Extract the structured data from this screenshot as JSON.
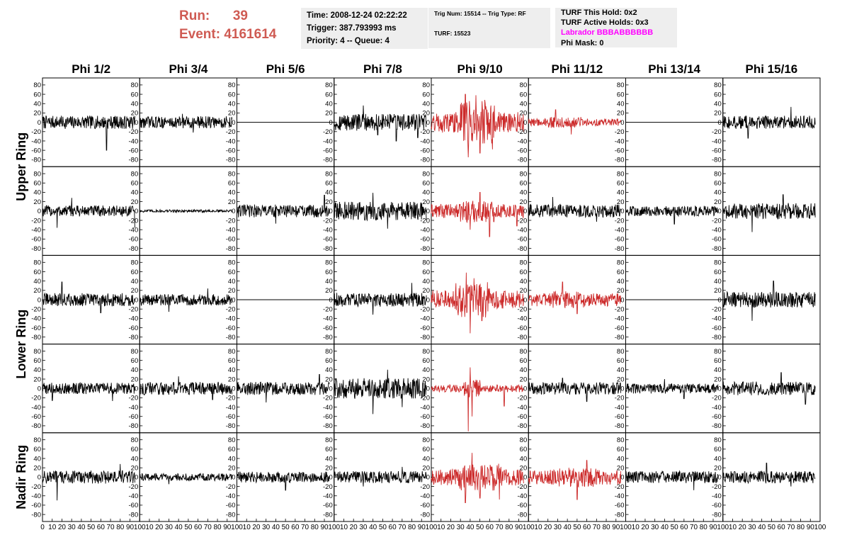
{
  "header": {
    "run_label": "Run:",
    "run_value": "39",
    "event_label": "Event:",
    "event_value": "4161614"
  },
  "info1": {
    "time": "Time: 2008-12-24 02:22:22",
    "trigger": "Trigger: 387.793993 ms",
    "priority": "Priority: 4 -- Queue: 4"
  },
  "info2": {
    "trig": "Trig Num: 15514 -- Trig Type: RF",
    "turf": "TURF: 15523"
  },
  "info3": {
    "this_hold": "TURF This Hold: 0x2",
    "active_holds": "TURF Active Holds: 0x3",
    "labrador": "Labrador BBBABBBBBB",
    "phi_mask": "Phi Mask: 0"
  },
  "colors": {
    "accent": "#cf5b53",
    "highlight": "#cc2a2a",
    "trace": "#000000",
    "labrador": "#ff00ff",
    "info_bg": "#eeeeee"
  },
  "chart_data": {
    "type": "line",
    "columns": [
      "Phi 1/2",
      "Phi 3/4",
      "Phi 5/6",
      "Phi 7/8",
      "Phi 9/10",
      "Phi 11/12",
      "Phi 13/14",
      "Phi 15/16"
    ],
    "ring_labels": [
      "Upper Ring",
      "Lower Ring",
      "Nadir Ring"
    ],
    "ylim": [
      -95,
      95
    ],
    "yticks": [
      -80,
      -60,
      -40,
      -20,
      0,
      20,
      40,
      60,
      80
    ],
    "xlim": [
      0,
      100
    ],
    "xtick_labels": [
      "0",
      "10",
      "20",
      "30",
      "40",
      "50",
      "60",
      "70",
      "80",
      "90",
      "100"
    ],
    "highlight_columns": [
      4,
      5
    ],
    "panels": [
      {
        "row": 0,
        "col": 0,
        "amp": 14,
        "spikes": [
          [
            14,
            -8
          ],
          [
            66,
            -60
          ],
          [
            84,
            -14
          ]
        ],
        "color": "black"
      },
      {
        "row": 0,
        "col": 1,
        "amp": 13,
        "spikes": [
          [
            44,
            18
          ],
          [
            55,
            -22
          ]
        ],
        "color": "black"
      },
      {
        "row": 0,
        "col": 2,
        "amp": 0,
        "flat": true,
        "color": "black"
      },
      {
        "row": 0,
        "col": 3,
        "amp": 18,
        "spikes": [
          [
            30,
            36
          ],
          [
            45,
            -27
          ],
          [
            64,
            -40
          ],
          [
            86,
            -33
          ]
        ],
        "color": "black"
      },
      {
        "row": 0,
        "col": 4,
        "amp": 22,
        "spikes": [
          [
            35,
            60
          ],
          [
            38,
            -75
          ],
          [
            46,
            58
          ],
          [
            50,
            -66
          ],
          [
            55,
            48
          ],
          [
            63,
            -58
          ]
        ],
        "color": "red",
        "burst": [
          30,
          65,
          2.2
        ]
      },
      {
        "row": 0,
        "col": 5,
        "amp": 8,
        "spikes": [
          [
            28,
            27
          ],
          [
            44,
            -26
          ],
          [
            90,
            -4
          ]
        ],
        "color": "red",
        "burst": [
          20,
          55,
          1.5
        ]
      },
      {
        "row": 0,
        "col": 6,
        "amp": 0,
        "flat": true,
        "color": "black"
      },
      {
        "row": 0,
        "col": 7,
        "amp": 14,
        "spikes": [
          [
            26,
            -34
          ],
          [
            70,
            33
          ]
        ],
        "color": "black"
      },
      {
        "row": 1,
        "col": 0,
        "amp": 12,
        "spikes": [
          [
            15,
            -36
          ],
          [
            30,
            28
          ],
          [
            95,
            -36
          ]
        ],
        "color": "black"
      },
      {
        "row": 1,
        "col": 1,
        "amp": 3,
        "spikes": [],
        "color": "black"
      },
      {
        "row": 1,
        "col": 2,
        "amp": 14,
        "spikes": [
          [
            40,
            -27
          ],
          [
            90,
            34
          ]
        ],
        "color": "black"
      },
      {
        "row": 1,
        "col": 3,
        "amp": 20,
        "spikes": [
          [
            40,
            39
          ],
          [
            55,
            -38
          ],
          [
            96,
            -32
          ]
        ],
        "color": "black"
      },
      {
        "row": 1,
        "col": 4,
        "amp": 15,
        "spikes": [
          [
            40,
            -40
          ],
          [
            50,
            40
          ],
          [
            60,
            -55
          ],
          [
            88,
            -32
          ]
        ],
        "color": "red",
        "burst": [
          30,
          65,
          1.6
        ]
      },
      {
        "row": 1,
        "col": 5,
        "amp": 14,
        "spikes": [
          [
            25,
            30
          ],
          [
            70,
            -23
          ]
        ],
        "color": "black"
      },
      {
        "row": 1,
        "col": 6,
        "amp": 11,
        "spikes": [
          [
            50,
            -28
          ]
        ],
        "color": "black"
      },
      {
        "row": 1,
        "col": 7,
        "amp": 17,
        "spikes": [
          [
            30,
            -45
          ],
          [
            62,
            35
          ]
        ],
        "color": "black"
      },
      {
        "row": 2,
        "col": 0,
        "amp": 14,
        "spikes": [
          [
            20,
            38
          ],
          [
            60,
            -28
          ]
        ],
        "color": "black"
      },
      {
        "row": 2,
        "col": 1,
        "amp": 12,
        "spikes": [
          [
            30,
            -26
          ],
          [
            70,
            24
          ]
        ],
        "color": "black"
      },
      {
        "row": 2,
        "col": 2,
        "amp": 0,
        "flat": true,
        "color": "black"
      },
      {
        "row": 2,
        "col": 3,
        "amp": 15,
        "spikes": [
          [
            40,
            -32
          ],
          [
            80,
            36
          ]
        ],
        "color": "black"
      },
      {
        "row": 2,
        "col": 4,
        "amp": 20,
        "spikes": [
          [
            36,
            58
          ],
          [
            40,
            -72
          ],
          [
            44,
            46
          ],
          [
            52,
            -45
          ]
        ],
        "color": "red",
        "burst": [
          25,
          60,
          1.9
        ]
      },
      {
        "row": 2,
        "col": 5,
        "amp": 14,
        "spikes": [
          [
            35,
            38
          ],
          [
            50,
            -30
          ]
        ],
        "color": "red",
        "burst": [
          25,
          60,
          1.3
        ]
      },
      {
        "row": 2,
        "col": 6,
        "amp": 0,
        "flat": true,
        "color": "black"
      },
      {
        "row": 2,
        "col": 7,
        "amp": 17,
        "spikes": [
          [
            30,
            -45
          ],
          [
            52,
            40
          ]
        ],
        "color": "black"
      },
      {
        "row": 3,
        "col": 0,
        "amp": 12,
        "spikes": [
          [
            10,
            -26
          ],
          [
            72,
            -27
          ]
        ],
        "color": "black"
      },
      {
        "row": 3,
        "col": 1,
        "amp": 14,
        "spikes": [
          [
            40,
            26
          ],
          [
            75,
            -24
          ]
        ],
        "color": "black"
      },
      {
        "row": 3,
        "col": 2,
        "amp": 14,
        "spikes": [
          [
            30,
            -30
          ],
          [
            85,
            30
          ]
        ],
        "color": "black"
      },
      {
        "row": 3,
        "col": 3,
        "amp": 22,
        "spikes": [
          [
            40,
            -55
          ],
          [
            55,
            40
          ],
          [
            70,
            -40
          ]
        ],
        "color": "black"
      },
      {
        "row": 3,
        "col": 4,
        "amp": 8,
        "spikes": [
          [
            38,
            -92
          ],
          [
            40,
            45
          ],
          [
            42,
            -60
          ],
          [
            75,
            -38
          ]
        ],
        "color": "red",
        "burst": [
          33,
          50,
          2.5
        ]
      },
      {
        "row": 3,
        "col": 5,
        "amp": 13,
        "spikes": [
          [
            35,
            22
          ],
          [
            60,
            -28
          ]
        ],
        "color": "black"
      },
      {
        "row": 3,
        "col": 6,
        "amp": 11,
        "spikes": [
          [
            40,
            20
          ],
          [
            60,
            -22
          ]
        ],
        "color": "black"
      },
      {
        "row": 3,
        "col": 7,
        "amp": 15,
        "spikes": [
          [
            60,
            34
          ],
          [
            85,
            -34
          ]
        ],
        "color": "black"
      },
      {
        "row": 4,
        "col": 0,
        "amp": 14,
        "spikes": [
          [
            15,
            -50
          ],
          [
            80,
            28
          ]
        ],
        "color": "black"
      },
      {
        "row": 4,
        "col": 1,
        "amp": 8,
        "spikes": [
          [
            30,
            -15
          ]
        ],
        "color": "black"
      },
      {
        "row": 4,
        "col": 2,
        "amp": 12,
        "spikes": [
          [
            50,
            -28
          ]
        ],
        "color": "black"
      },
      {
        "row": 4,
        "col": 3,
        "amp": 13,
        "spikes": [
          [
            30,
            -20
          ],
          [
            70,
            22
          ]
        ],
        "color": "black"
      },
      {
        "row": 4,
        "col": 4,
        "amp": 18,
        "spikes": [
          [
            35,
            -55
          ],
          [
            42,
            52
          ],
          [
            50,
            -45
          ],
          [
            70,
            -48
          ]
        ],
        "color": "red",
        "burst": [
          28,
          72,
          1.6
        ]
      },
      {
        "row": 4,
        "col": 5,
        "amp": 16,
        "spikes": [
          [
            50,
            -48
          ],
          [
            60,
            36
          ]
        ],
        "color": "red",
        "burst": [
          30,
          70,
          1.3
        ]
      },
      {
        "row": 4,
        "col": 6,
        "amp": 13,
        "spikes": [
          [
            70,
            -28
          ]
        ],
        "color": "black"
      },
      {
        "row": 4,
        "col": 7,
        "amp": 13,
        "spikes": [
          [
            45,
            30
          ],
          [
            70,
            -20
          ]
        ],
        "color": "black"
      }
    ]
  }
}
